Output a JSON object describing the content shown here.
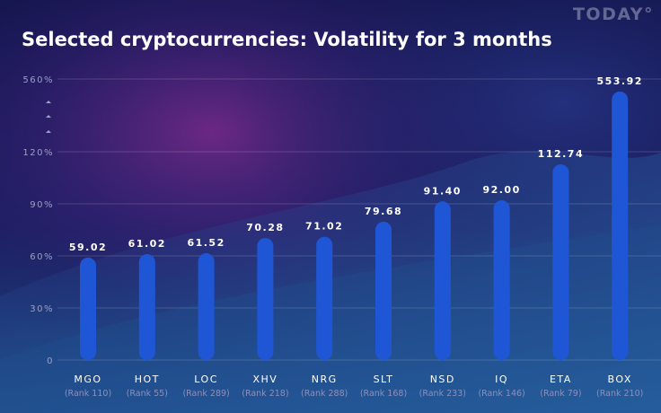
{
  "brand": {
    "logo_text": "TODAY°"
  },
  "chart_data": {
    "type": "bar",
    "title": "Selected cryptocurrencies: Volatility for 3 months",
    "xlabel": "",
    "ylabel": "",
    "y_tick_labels": [
      "0",
      "30%",
      "60%",
      "90%",
      "120%",
      "560%"
    ],
    "axis_break": "between 120% and 560%",
    "categories": [
      "MGO",
      "HOT",
      "LOC",
      "XHV",
      "NRG",
      "SLT",
      "NSD",
      "IQ",
      "ETA",
      "BOX"
    ],
    "ranks": [
      "(Rank 110)",
      "(Rank 55)",
      "(Rank 289)",
      "(Rank 218)",
      "(Rank 288)",
      "(Rank 168)",
      "(Rank 233)",
      "(Rank 146)",
      "(Rank 79)",
      "(Rank 210)"
    ],
    "values": [
      59.02,
      61.02,
      61.52,
      70.28,
      71.02,
      79.68,
      91.4,
      92.0,
      112.74,
      553.92
    ],
    "value_labels": [
      "59.02",
      "61.02",
      "61.52",
      "70.28",
      "71.02",
      "79.68",
      "91.40",
      "92.00",
      "112.74",
      "553.92"
    ],
    "grid": true,
    "legend": "none",
    "colors": {
      "bar_low": "#1e56d6",
      "bar_high": "#ee1a5e",
      "text": "#ffffff",
      "muted": "#9aa0c8"
    }
  }
}
